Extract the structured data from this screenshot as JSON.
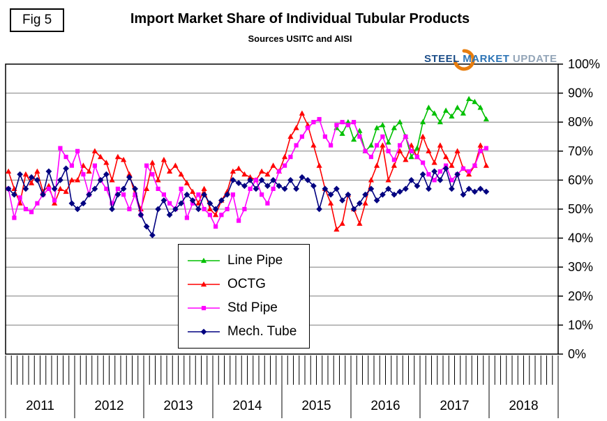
{
  "figure_label": "Fig 5",
  "logo": {
    "steel": "STEEL",
    "market": "MARKET",
    "update": "UPDATE"
  },
  "chart_data": {
    "type": "line",
    "title": "Import Market Share of Individual Tubular Products",
    "subtitle": "Sources USITC and AISI",
    "x_axis": {
      "start": "2011-01",
      "end": "2018-12",
      "unit": "month"
    },
    "year_labels": [
      "2011",
      "2012",
      "2013",
      "2014",
      "2015",
      "2016",
      "2017",
      "2018"
    ],
    "ylim": [
      0,
      100
    ],
    "y_tick_labels": [
      "0%",
      "10%",
      "20%",
      "30%",
      "40%",
      "50%",
      "60%",
      "70%",
      "80%",
      "90%",
      "100%"
    ],
    "grid": true,
    "legend_position": "center-left",
    "series": [
      {
        "name": "Line Pipe",
        "color": "#00c000",
        "marker": "triangle",
        "start_index": 57,
        "values": [
          78,
          76,
          80,
          74,
          77,
          70,
          72,
          78,
          79,
          73,
          78,
          80,
          75,
          68,
          71,
          80,
          85,
          83,
          80,
          84,
          82,
          85,
          83,
          88,
          87,
          85,
          81
        ]
      },
      {
        "name": "OCTG",
        "color": "#ff0000",
        "marker": "triangle",
        "start_index": 0,
        "values": [
          63,
          57,
          52,
          62,
          59,
          63,
          56,
          58,
          52,
          57,
          56,
          60,
          60,
          65,
          63,
          70,
          68,
          66,
          60,
          68,
          67,
          62,
          55,
          50,
          57,
          66,
          60,
          67,
          63,
          65,
          62,
          59,
          56,
          52,
          57,
          50,
          48,
          53,
          56,
          63,
          64,
          62,
          61,
          60,
          63,
          62,
          65,
          63,
          68,
          75,
          78,
          83,
          79,
          72,
          65,
          57,
          52,
          43,
          45,
          55,
          50,
          45,
          52,
          60,
          65,
          72,
          60,
          65,
          70,
          67,
          72,
          68,
          75,
          70,
          66,
          72,
          68,
          65,
          70,
          64,
          62,
          65,
          72,
          65
        ]
      },
      {
        "name": "Std Pipe",
        "color": "#ff00ff",
        "marker": "square",
        "start_index": 0,
        "values": [
          57,
          47,
          54,
          50,
          49,
          52,
          55,
          57,
          53,
          71,
          68,
          65,
          70,
          62,
          55,
          65,
          60,
          57,
          52,
          57,
          55,
          50,
          55,
          48,
          65,
          62,
          57,
          55,
          52,
          50,
          57,
          47,
          52,
          55,
          50,
          48,
          44,
          48,
          50,
          55,
          46,
          50,
          57,
          60,
          55,
          52,
          57,
          63,
          65,
          68,
          72,
          75,
          78,
          80,
          81,
          75,
          72,
          79,
          80,
          79,
          80,
          75,
          70,
          68,
          72,
          75,
          70,
          67,
          72,
          75,
          70,
          68,
          66,
          62,
          60,
          63,
          65,
          60,
          62,
          64,
          63,
          65,
          70,
          71
        ]
      },
      {
        "name": "Mech. Tube",
        "color": "#000080",
        "marker": "diamond",
        "start_index": 0,
        "values": [
          57,
          55,
          62,
          57,
          61,
          60,
          55,
          63,
          57,
          60,
          64,
          52,
          50,
          52,
          55,
          57,
          60,
          62,
          50,
          55,
          57,
          61,
          57,
          48,
          44,
          41,
          50,
          53,
          48,
          50,
          52,
          55,
          53,
          50,
          55,
          52,
          50,
          53,
          55,
          60,
          59,
          58,
          60,
          57,
          60,
          58,
          60,
          58,
          57,
          60,
          57,
          61,
          60,
          58,
          50,
          57,
          55,
          57,
          53,
          55,
          50,
          52,
          55,
          57,
          53,
          55,
          57,
          55,
          56,
          57,
          60,
          58,
          62,
          57,
          63,
          60,
          64,
          57,
          62,
          55,
          57,
          56,
          57,
          56
        ]
      }
    ]
  }
}
